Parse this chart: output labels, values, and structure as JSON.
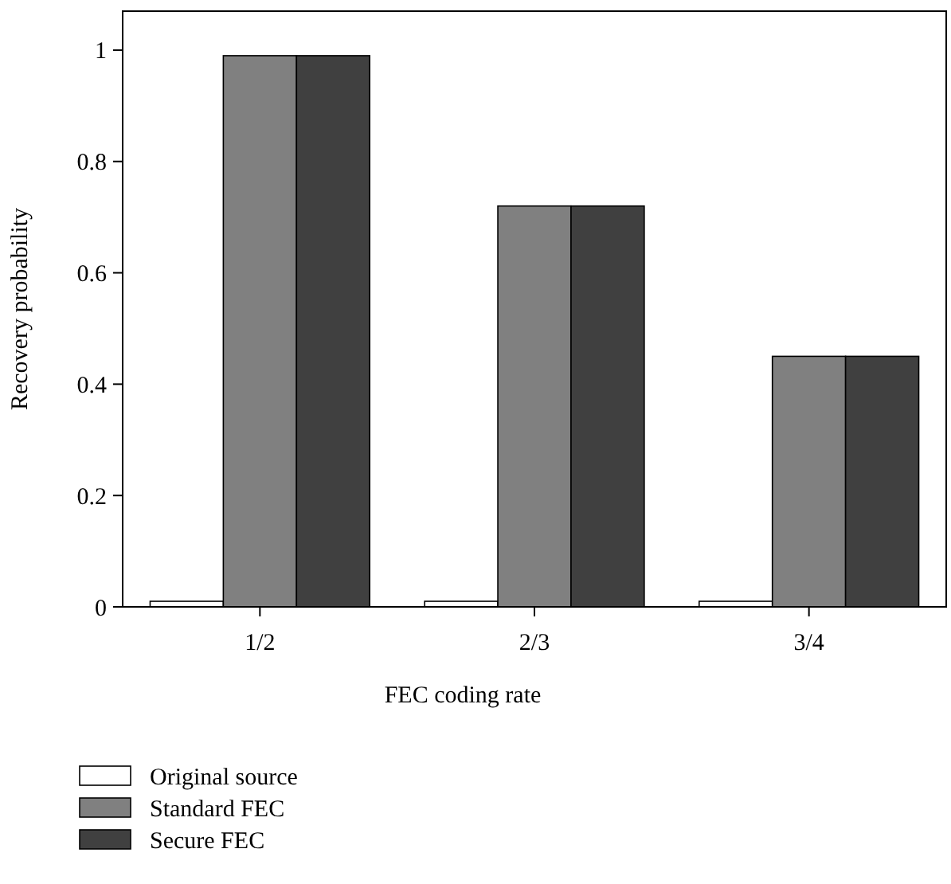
{
  "chart_data": {
    "type": "bar",
    "xlabel": "FEC coding rate",
    "ylabel": "Recovery probability",
    "categories": [
      "1/2",
      "2/3",
      "3/4"
    ],
    "series": [
      {
        "name": "Original source",
        "color": "#ffffff",
        "values": [
          0.01,
          0.01,
          0.01
        ]
      },
      {
        "name": "Standard FEC",
        "color": "#808080",
        "values": [
          0.99,
          0.72,
          0.45
        ]
      },
      {
        "name": "Secure FEC",
        "color": "#404040",
        "values": [
          0.99,
          0.72,
          0.45
        ]
      }
    ],
    "ylim": [
      0,
      1.07
    ],
    "yticks": [
      0,
      0.2,
      0.4,
      0.6,
      0.8,
      1
    ],
    "grid": false,
    "legend": "bottom left"
  }
}
